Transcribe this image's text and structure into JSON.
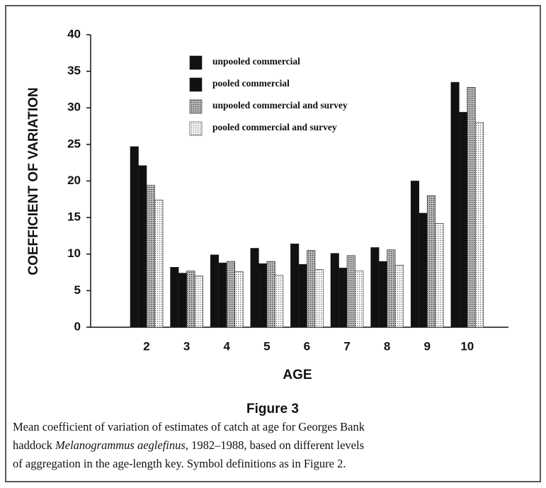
{
  "chart_data": {
    "type": "bar",
    "ylabel": "COEFFICIENT OF VARIATION",
    "xlabel": "AGE",
    "categories": [
      "2",
      "3",
      "4",
      "5",
      "6",
      "7",
      "8",
      "9",
      "10"
    ],
    "series": [
      {
        "name": "unpooled commercial",
        "color": "#111111",
        "values": [
          24.7,
          8.2,
          9.9,
          10.8,
          11.4,
          10.1,
          10.9,
          20.0,
          33.5
        ]
      },
      {
        "name": "pooled commercial",
        "color": "#111111",
        "values": [
          22.1,
          7.4,
          8.8,
          8.7,
          8.6,
          8.1,
          9.0,
          15.6,
          29.4
        ]
      },
      {
        "name": "unpooled commercial and survey",
        "color": "#777777",
        "values": [
          19.4,
          7.7,
          9.0,
          9.0,
          10.5,
          9.8,
          10.6,
          18.0,
          32.8
        ]
      },
      {
        "name": "pooled commercial and survey",
        "color": "#cccccc",
        "values": [
          17.4,
          7.0,
          7.6,
          7.1,
          7.9,
          7.7,
          8.5,
          14.2,
          28.0
        ]
      }
    ],
    "ylim": [
      0,
      40
    ],
    "yticks": [
      0,
      5,
      10,
      15,
      20,
      25,
      30,
      35,
      40
    ],
    "legend": "upper-left"
  },
  "caption": {
    "label": "Figure 3",
    "line1": "Mean coefficient of variation of estimates of catch at age for Georges Bank",
    "line2_start": "haddock ",
    "species": "Melanogrammus aeglefinus",
    "line2_end": ", 1982–1988, based on different levels",
    "line3": "of aggregation in the age-length key. Symbol definitions as in Figure 2."
  }
}
